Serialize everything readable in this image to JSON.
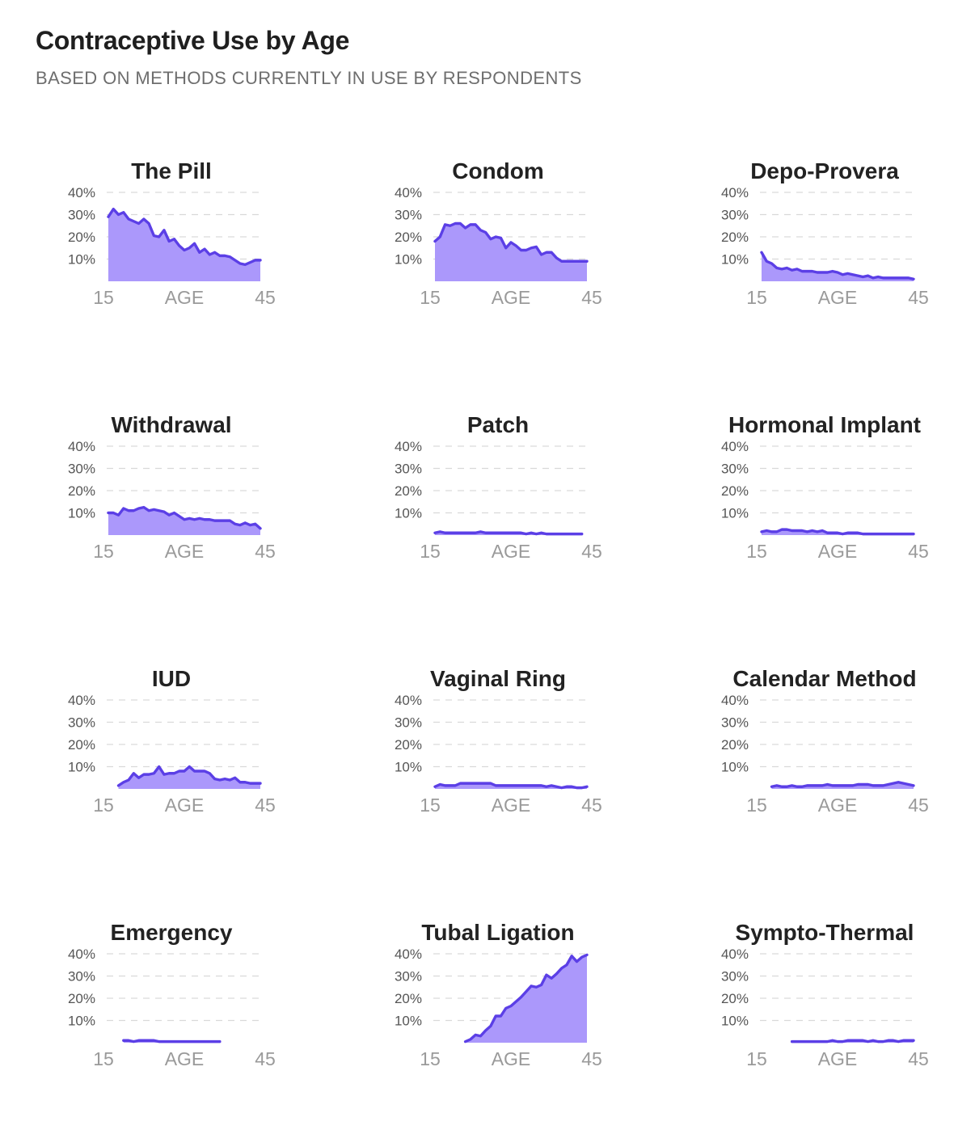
{
  "title": "Contraceptive Use by Age",
  "subtitle": "BASED ON METHODS CURRENTLY IN USE BY RESPONDENTS",
  "colors": {
    "line": "#5b3fe6",
    "area": "#ab98fb",
    "grid": "#d9d9d9"
  },
  "chart_data": [
    {
      "type": "area",
      "title": "The Pill",
      "x": [
        15,
        16,
        17,
        18,
        19,
        20,
        21,
        22,
        23,
        24,
        25,
        26,
        27,
        28,
        29,
        30,
        31,
        32,
        33,
        34,
        35,
        36,
        37,
        38,
        39,
        40,
        41,
        42,
        43,
        44,
        45
      ],
      "values": [
        29,
        32.5,
        30,
        31,
        28,
        27,
        26,
        28,
        26,
        20.5,
        20,
        23,
        18,
        19,
        16,
        14,
        15,
        17,
        13,
        14.5,
        12,
        13,
        11.5,
        11.5,
        11,
        9.5,
        8,
        7.5,
        8.5,
        9.5,
        9.5
      ],
      "xlabel": "AGE",
      "xticks": [
        15,
        45
      ],
      "yticks": [
        "40%",
        "30%",
        "20%",
        "10%"
      ],
      "ylim": [
        0,
        40
      ],
      "xlim": [
        15,
        45
      ],
      "grid": true
    },
    {
      "type": "area",
      "title": "Condom",
      "x": [
        15,
        16,
        17,
        18,
        19,
        20,
        21,
        22,
        23,
        24,
        25,
        26,
        27,
        28,
        29,
        30,
        31,
        32,
        33,
        34,
        35,
        36,
        37,
        38,
        39,
        40,
        41,
        42,
        43,
        44,
        45
      ],
      "values": [
        18,
        20,
        25.5,
        25,
        26,
        26,
        24,
        25.5,
        25.5,
        23,
        22,
        19,
        20,
        19.5,
        15,
        17.5,
        16,
        14,
        14,
        15,
        15.5,
        12,
        13,
        13,
        10.5,
        9,
        9,
        9,
        9,
        9,
        9
      ],
      "xlabel": "AGE",
      "xticks": [
        15,
        45
      ],
      "yticks": [
        "40%",
        "30%",
        "20%",
        "10%"
      ],
      "ylim": [
        0,
        40
      ],
      "xlim": [
        15,
        45
      ],
      "grid": true
    },
    {
      "type": "area",
      "title": "Depo-Provera",
      "x": [
        15,
        16,
        17,
        18,
        19,
        20,
        21,
        22,
        23,
        24,
        25,
        26,
        27,
        28,
        29,
        30,
        31,
        32,
        33,
        34,
        35,
        36,
        37,
        38,
        39,
        40,
        41,
        42,
        43,
        44,
        45
      ],
      "values": [
        13,
        9,
        8,
        6,
        5.5,
        6,
        5,
        5.5,
        4.5,
        4.5,
        4.5,
        4,
        4,
        4,
        4.5,
        4,
        3,
        3.5,
        3,
        2.5,
        2,
        2.5,
        1.5,
        2,
        1.5,
        1.5,
        1.5,
        1.5,
        1.5,
        1.5,
        1
      ],
      "xlabel": "AGE",
      "xticks": [
        15,
        45
      ],
      "yticks": [
        "40%",
        "30%",
        "20%",
        "10%"
      ],
      "ylim": [
        0,
        40
      ],
      "xlim": [
        15,
        45
      ],
      "grid": true
    },
    {
      "type": "area",
      "title": "Withdrawal",
      "x": [
        15,
        16,
        17,
        18,
        19,
        20,
        21,
        22,
        23,
        24,
        25,
        26,
        27,
        28,
        29,
        30,
        31,
        32,
        33,
        34,
        35,
        36,
        37,
        38,
        39,
        40,
        41,
        42,
        43,
        44,
        45
      ],
      "values": [
        10,
        10,
        9,
        12,
        11,
        11,
        12,
        12.5,
        11,
        11.5,
        11,
        10.5,
        9,
        10,
        8.5,
        7,
        7.5,
        7,
        7.5,
        7,
        7,
        6.5,
        6.5,
        6.5,
        6.5,
        5,
        4.5,
        5.5,
        4.5,
        5,
        3
      ],
      "xlabel": "AGE",
      "xticks": [
        15,
        45
      ],
      "yticks": [
        "40%",
        "30%",
        "20%",
        "10%"
      ],
      "ylim": [
        0,
        40
      ],
      "xlim": [
        15,
        45
      ],
      "grid": true
    },
    {
      "type": "area",
      "title": "Patch",
      "x": [
        15,
        16,
        17,
        18,
        19,
        20,
        21,
        22,
        23,
        24,
        25,
        26,
        27,
        28,
        29,
        30,
        31,
        32,
        33,
        34,
        35,
        36,
        37,
        38,
        39,
        40,
        41,
        42,
        43,
        44
      ],
      "values": [
        1,
        1.5,
        1,
        1,
        1,
        1,
        1,
        1,
        1,
        1.5,
        1,
        1,
        1,
        1,
        1,
        1,
        1,
        1,
        0.5,
        1,
        0.5,
        1,
        0.5,
        0.5,
        0.5,
        0.5,
        0.5,
        0.5,
        0.5,
        0.5
      ],
      "xlabel": "AGE",
      "xticks": [
        15,
        45
      ],
      "yticks": [
        "40%",
        "30%",
        "20%",
        "10%"
      ],
      "ylim": [
        0,
        40
      ],
      "xlim": [
        15,
        45
      ],
      "grid": true
    },
    {
      "type": "area",
      "title": "Hormonal Implant",
      "x": [
        15,
        16,
        17,
        18,
        19,
        20,
        21,
        22,
        23,
        24,
        25,
        26,
        27,
        28,
        29,
        30,
        31,
        32,
        33,
        34,
        35,
        36,
        37,
        38,
        39,
        40,
        41,
        42,
        43,
        44,
        45
      ],
      "values": [
        1.5,
        2,
        1.5,
        1.5,
        2.5,
        2.5,
        2,
        2,
        2,
        1.5,
        2,
        1.5,
        2,
        1,
        1,
        1,
        0.5,
        1,
        1,
        1,
        0.5,
        0.5,
        0.5,
        0.5,
        0.5,
        0.5,
        0.5,
        0.5,
        0.5,
        0.5,
        0.5
      ],
      "xlabel": "AGE",
      "xticks": [
        15,
        45
      ],
      "yticks": [
        "40%",
        "30%",
        "20%",
        "10%"
      ],
      "ylim": [
        0,
        40
      ],
      "xlim": [
        15,
        45
      ],
      "grid": true
    },
    {
      "type": "area",
      "title": "IUD",
      "x": [
        17,
        18,
        19,
        20,
        21,
        22,
        23,
        24,
        25,
        26,
        27,
        28,
        29,
        30,
        31,
        32,
        33,
        34,
        35,
        36,
        37,
        38,
        39,
        40,
        41,
        42,
        43,
        44,
        45
      ],
      "values": [
        1.5,
        3,
        4,
        7,
        5,
        6.5,
        6.5,
        7,
        10,
        6.5,
        7,
        7,
        8,
        8,
        10,
        8,
        8,
        8,
        7,
        4.5,
        4,
        4.5,
        4,
        5,
        3,
        3,
        2.5,
        2.5,
        2.5
      ],
      "xlabel": "AGE",
      "xticks": [
        15,
        45
      ],
      "yticks": [
        "40%",
        "30%",
        "20%",
        "10%"
      ],
      "ylim": [
        0,
        40
      ],
      "xlim": [
        15,
        45
      ],
      "grid": true
    },
    {
      "type": "area",
      "title": "Vaginal Ring",
      "x": [
        15,
        16,
        17,
        18,
        19,
        20,
        21,
        22,
        23,
        24,
        25,
        26,
        27,
        28,
        29,
        30,
        31,
        32,
        33,
        34,
        35,
        36,
        37,
        38,
        39,
        40,
        41,
        42,
        43,
        44,
        45
      ],
      "values": [
        1,
        2,
        1.5,
        1.5,
        1.5,
        2.5,
        2.5,
        2.5,
        2.5,
        2.5,
        2.5,
        2.5,
        1.5,
        1.5,
        1.5,
        1.5,
        1.5,
        1.5,
        1.5,
        1.5,
        1.5,
        1.5,
        1,
        1.5,
        1,
        0.5,
        1,
        1,
        0.5,
        0.5,
        1
      ],
      "xlabel": "AGE",
      "xticks": [
        15,
        45
      ],
      "yticks": [
        "40%",
        "30%",
        "20%",
        "10%"
      ],
      "ylim": [
        0,
        40
      ],
      "xlim": [
        15,
        45
      ],
      "grid": true
    },
    {
      "type": "area",
      "title": "Calendar Method",
      "x": [
        17,
        18,
        19,
        20,
        21,
        22,
        23,
        24,
        25,
        26,
        27,
        28,
        29,
        30,
        31,
        32,
        33,
        34,
        35,
        36,
        37,
        38,
        39,
        40,
        41,
        42,
        43,
        44,
        45
      ],
      "values": [
        1,
        1.5,
        1,
        1,
        1.5,
        1,
        1,
        1.5,
        1.5,
        1.5,
        1.5,
        2,
        1.5,
        1.5,
        1.5,
        1.5,
        1.5,
        2,
        2,
        2,
        1.5,
        1.5,
        1.5,
        2,
        2.5,
        3,
        2.5,
        2,
        1.5
      ],
      "xlabel": "AGE",
      "xticks": [
        15,
        45
      ],
      "yticks": [
        "40%",
        "30%",
        "20%",
        "10%"
      ],
      "ylim": [
        0,
        40
      ],
      "xlim": [
        15,
        45
      ],
      "grid": true
    },
    {
      "type": "area",
      "title": "Emergency",
      "x": [
        18,
        19,
        20,
        21,
        22,
        23,
        24,
        25,
        26,
        27,
        28,
        29,
        30,
        31,
        32,
        33,
        34,
        35,
        36,
        37
      ],
      "values": [
        1,
        1,
        0.5,
        1,
        1,
        1,
        1,
        0.5,
        0.5,
        0.5,
        0.5,
        0.5,
        0.5,
        0.5,
        0.5,
        0.5,
        0.5,
        0.5,
        0.5,
        0.5
      ],
      "xlabel": "AGE",
      "xticks": [
        15,
        45
      ],
      "yticks": [
        "40%",
        "30%",
        "20%",
        "10%"
      ],
      "ylim": [
        0,
        40
      ],
      "xlim": [
        15,
        45
      ],
      "grid": true
    },
    {
      "type": "area",
      "title": "Tubal Ligation",
      "x": [
        21,
        22,
        23,
        24,
        25,
        26,
        27,
        28,
        29,
        30,
        31,
        32,
        33,
        34,
        35,
        36,
        37,
        38,
        39,
        40,
        41,
        42,
        43,
        44,
        45
      ],
      "values": [
        0.5,
        1.5,
        3.5,
        3,
        5.5,
        7.5,
        12,
        12,
        15.5,
        16.5,
        18.5,
        20.5,
        23,
        25.5,
        25,
        26,
        30.5,
        29,
        31,
        33.5,
        35,
        39,
        36.5,
        38.5,
        39.5
      ],
      "xlabel": "AGE",
      "xticks": [
        15,
        45
      ],
      "yticks": [
        "40%",
        "30%",
        "20%",
        "10%"
      ],
      "ylim": [
        0,
        40
      ],
      "xlim": [
        15,
        45
      ],
      "grid": true
    },
    {
      "type": "area",
      "title": "Sympto-Thermal",
      "x": [
        21,
        22,
        23,
        24,
        25,
        26,
        27,
        28,
        29,
        30,
        31,
        32,
        33,
        34,
        35,
        36,
        37,
        38,
        39,
        40,
        41,
        42,
        43,
        44,
        45
      ],
      "values": [
        0.5,
        0.5,
        0.5,
        0.5,
        0.5,
        0.5,
        0.5,
        0.5,
        1,
        0.5,
        0.5,
        1,
        1,
        1,
        1,
        0.5,
        1,
        0.5,
        0.5,
        1,
        1,
        0.5,
        1,
        1,
        1
      ],
      "xlabel": "AGE",
      "xticks": [
        15,
        45
      ],
      "yticks": [
        "40%",
        "30%",
        "20%",
        "10%"
      ],
      "ylim": [
        0,
        40
      ],
      "xlim": [
        15,
        45
      ],
      "grid": true
    }
  ]
}
